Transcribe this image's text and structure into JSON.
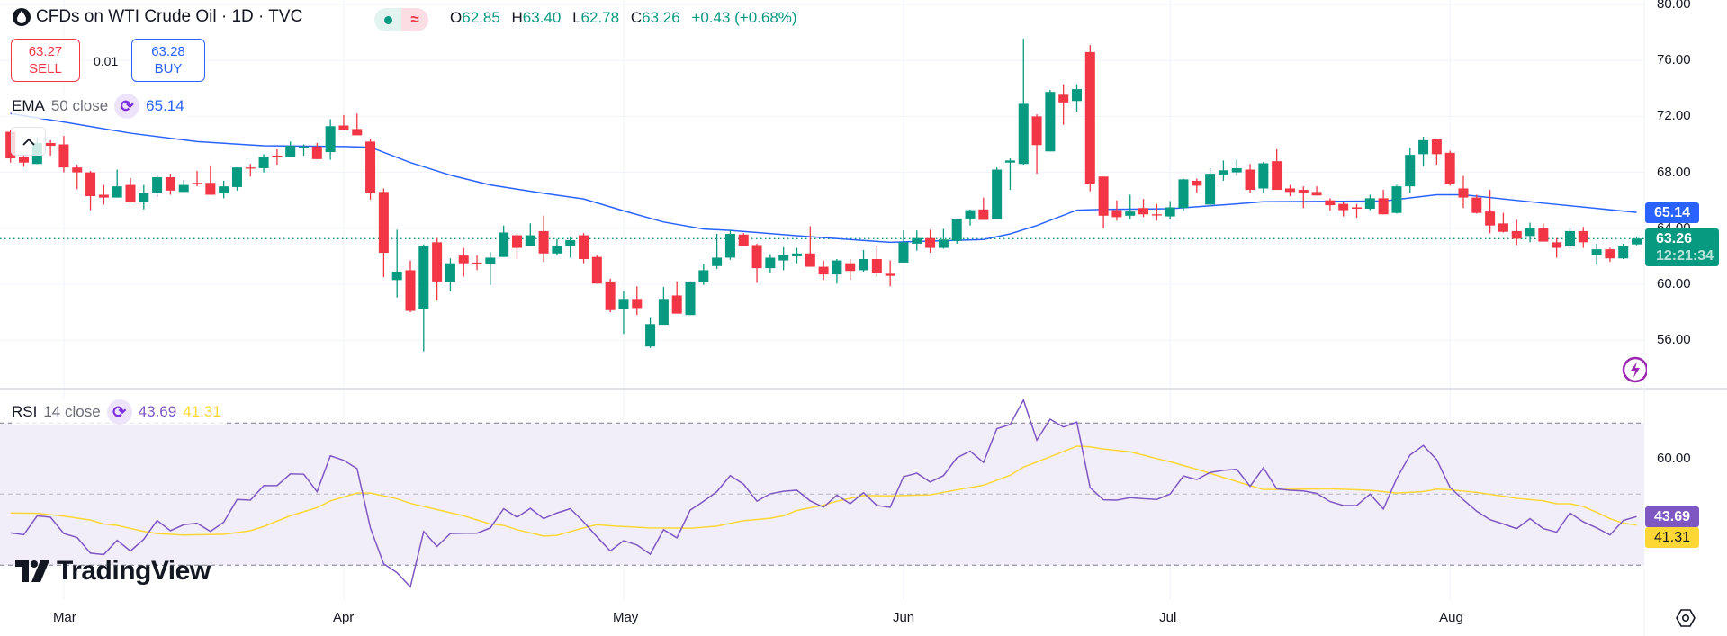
{
  "header": {
    "symbol_title": "CFDs on WTI Crude Oil · 1D · TVC",
    "logo_icon": "oil-drop-icon",
    "status_market_icon": "market-open-dot-icon",
    "status_delay_icon": "approx-icon",
    "status_delay_glyph": "≈",
    "ohlc": {
      "o_label": "O",
      "o": "62.85",
      "h_label": "H",
      "h": "63.40",
      "l_label": "L",
      "l": "62.78",
      "c_label": "C",
      "c": "63.26",
      "change": "+0.43 (+0.68%)"
    }
  },
  "trade": {
    "sell_price": "63.27",
    "sell_label": "SELL",
    "spread": "0.01",
    "buy_price": "63.28",
    "buy_label": "BUY"
  },
  "ema_legend": {
    "name": "EMA",
    "args": "50 close",
    "value": "65.14"
  },
  "rsi_legend": {
    "name": "RSI",
    "args": "14 close",
    "value": "43.69",
    "ma_value": "41.31"
  },
  "price_axis": {
    "ticks": [
      "80.00",
      "76.00",
      "72.00",
      "68.00",
      "64.00",
      "60.00",
      "56.00"
    ]
  },
  "rsi_axis": {
    "ticks": [
      "60.00"
    ]
  },
  "badges": {
    "ema": "65.14",
    "last_price": "63.26",
    "countdown": "12:21:34",
    "rsi": "43.69",
    "rsi_ma": "41.31"
  },
  "time_axis": [
    {
      "label": "Mar",
      "bar": 5
    },
    {
      "label": "Apr",
      "bar": 26
    },
    {
      "label": "May",
      "bar": 47
    },
    {
      "label": "Jun",
      "bar": 68
    },
    {
      "label": "Jul",
      "bar": 88
    },
    {
      "label": "Aug",
      "bar": 109
    }
  ],
  "watermark": "TradingView",
  "colors": {
    "up": "#089981",
    "down": "#f23645",
    "ema": "#2962ff",
    "rsi": "#7e57c2",
    "rsi_ma": "#fdd835",
    "rsi_band": "#f1edf9"
  },
  "chart_data": [
    {
      "type": "candlestick",
      "ylim": [
        53,
        80
      ],
      "yticks": [
        56,
        60,
        64,
        68,
        72,
        76,
        80
      ],
      "grid": true,
      "last_price": 63.26,
      "ohlc_fields": [
        "open",
        "high",
        "low",
        "close"
      ],
      "candles": [
        [
          70.9,
          71.0,
          68.7,
          69.0
        ],
        [
          69.1,
          69.25,
          68.4,
          68.7
        ],
        [
          68.6,
          70.5,
          68.6,
          70.1
        ],
        [
          70.1,
          70.3,
          69.2,
          69.9
        ],
        [
          70.0,
          70.6,
          68.0,
          68.35
        ],
        [
          68.35,
          68.55,
          66.8,
          68.0
        ],
        [
          68.0,
          68.1,
          65.3,
          66.3
        ],
        [
          66.4,
          67.1,
          65.7,
          66.2
        ],
        [
          66.2,
          68.2,
          66.2,
          67.0
        ],
        [
          67.1,
          67.6,
          65.85,
          65.85
        ],
        [
          65.85,
          67.1,
          65.35,
          66.55
        ],
        [
          66.5,
          67.8,
          66.25,
          67.65
        ],
        [
          67.65,
          67.9,
          66.4,
          66.7
        ],
        [
          66.6,
          67.45,
          66.6,
          67.1
        ],
        [
          67.25,
          68.1,
          67.0,
          67.2
        ],
        [
          67.25,
          68.5,
          66.4,
          66.4
        ],
        [
          66.55,
          67.4,
          66.15,
          67.0
        ],
        [
          66.95,
          68.35,
          66.7,
          68.35
        ],
        [
          68.35,
          68.6,
          67.7,
          68.3
        ],
        [
          68.3,
          69.3,
          68.0,
          69.1
        ],
        [
          69.2,
          69.65,
          68.55,
          69.15
        ],
        [
          69.1,
          70.2,
          69.1,
          69.9
        ],
        [
          69.75,
          70.0,
          69.2,
          69.85
        ],
        [
          69.85,
          70.1,
          68.95,
          68.95
        ],
        [
          69.45,
          71.8,
          68.9,
          71.3
        ],
        [
          71.35,
          72.1,
          71.0,
          71.0
        ],
        [
          71.1,
          72.2,
          70.65,
          70.65
        ],
        [
          70.2,
          70.35,
          66.05,
          66.5
        ],
        [
          66.6,
          66.85,
          60.5,
          62.25
        ],
        [
          60.3,
          63.9,
          59.05,
          60.9
        ],
        [
          61.0,
          61.7,
          58.0,
          58.1
        ],
        [
          58.25,
          62.85,
          55.2,
          62.75
        ],
        [
          63.0,
          63.3,
          58.85,
          60.2
        ],
        [
          60.15,
          61.85,
          59.5,
          61.5
        ],
        [
          62.05,
          62.6,
          60.55,
          61.5
        ],
        [
          61.55,
          62.05,
          61.0,
          61.5
        ],
        [
          61.45,
          62.3,
          59.95,
          61.9
        ],
        [
          61.95,
          64.2,
          61.95,
          63.7
        ],
        [
          63.5,
          63.6,
          61.8,
          62.6
        ],
        [
          62.7,
          64.35,
          62.7,
          63.5
        ],
        [
          63.8,
          64.9,
          61.6,
          62.2
        ],
        [
          62.2,
          63.25,
          62.05,
          62.75
        ],
        [
          62.75,
          63.4,
          61.9,
          63.15
        ],
        [
          63.5,
          63.65,
          61.5,
          61.8
        ],
        [
          61.95,
          62.05,
          60.05,
          60.05
        ],
        [
          60.2,
          60.4,
          58.0,
          58.15
        ],
        [
          58.2,
          59.5,
          56.45,
          58.95
        ],
        [
          58.95,
          59.85,
          57.8,
          58.3
        ],
        [
          55.55,
          57.65,
          55.45,
          57.15
        ],
        [
          57.1,
          59.8,
          57.1,
          58.95
        ],
        [
          59.2,
          60.2,
          57.9,
          57.9
        ],
        [
          57.8,
          60.2,
          57.8,
          60.2
        ],
        [
          60.15,
          61.45,
          59.95,
          61.0
        ],
        [
          61.3,
          63.6,
          61.1,
          61.9
        ],
        [
          61.9,
          63.9,
          61.75,
          63.6
        ],
        [
          63.55,
          63.65,
          62.75,
          62.75
        ],
        [
          62.8,
          62.9,
          60.1,
          61.15
        ],
        [
          61.15,
          62.15,
          60.8,
          61.9
        ],
        [
          61.7,
          62.65,
          61.0,
          62.1
        ],
        [
          62.0,
          62.6,
          61.5,
          62.2
        ],
        [
          62.2,
          64.15,
          61.25,
          61.25
        ],
        [
          61.25,
          61.7,
          60.3,
          60.7
        ],
        [
          60.7,
          61.8,
          60.05,
          61.7
        ],
        [
          61.5,
          61.8,
          60.3,
          60.95
        ],
        [
          61.0,
          62.45,
          60.9,
          61.8
        ],
        [
          61.8,
          62.75,
          60.55,
          60.8
        ],
        [
          60.75,
          61.7,
          59.85,
          60.6
        ],
        [
          61.55,
          63.85,
          61.55,
          63.0
        ],
        [
          62.9,
          63.85,
          62.4,
          63.3
        ],
        [
          63.3,
          63.9,
          62.25,
          62.6
        ],
        [
          62.6,
          63.95,
          62.55,
          63.2
        ],
        [
          63.1,
          64.7,
          62.9,
          64.7
        ],
        [
          64.7,
          65.35,
          64.2,
          65.3
        ],
        [
          65.35,
          66.2,
          64.6,
          64.6
        ],
        [
          64.65,
          68.35,
          64.65,
          68.2
        ],
        [
          68.7,
          69.0,
          66.75,
          68.85
        ],
        [
          68.6,
          77.55,
          68.55,
          72.9
        ],
        [
          72.0,
          72.15,
          67.9,
          69.95
        ],
        [
          69.5,
          73.9,
          69.5,
          73.75
        ],
        [
          73.55,
          74.3,
          71.4,
          73.0
        ],
        [
          73.1,
          74.3,
          72.35,
          73.95
        ],
        [
          76.6,
          77.1,
          66.65,
          67.2
        ],
        [
          67.7,
          67.7,
          64.0,
          64.9
        ],
        [
          65.3,
          66.0,
          64.55,
          64.8
        ],
        [
          64.9,
          66.4,
          64.65,
          65.2
        ],
        [
          65.45,
          66.1,
          64.8,
          65.0
        ],
        [
          65.0,
          65.75,
          64.55,
          64.95
        ],
        [
          64.85,
          65.95,
          64.65,
          65.5
        ],
        [
          65.45,
          67.55,
          65.25,
          67.5
        ],
        [
          67.4,
          67.55,
          66.55,
          67.05
        ],
        [
          65.7,
          68.3,
          65.55,
          67.9
        ],
        [
          67.85,
          68.85,
          67.4,
          68.15
        ],
        [
          68.0,
          68.9,
          67.75,
          68.3
        ],
        [
          68.2,
          68.6,
          66.5,
          66.75
        ],
        [
          66.85,
          68.75,
          66.55,
          68.65
        ],
        [
          68.8,
          69.65,
          66.75,
          66.75
        ],
        [
          66.85,
          67.1,
          66.3,
          66.6
        ],
        [
          66.75,
          67.0,
          65.45,
          66.55
        ],
        [
          66.6,
          67.0,
          66.35,
          66.35
        ],
        [
          66.0,
          66.15,
          65.25,
          65.65
        ],
        [
          65.75,
          65.85,
          64.85,
          65.3
        ],
        [
          65.5,
          65.75,
          64.75,
          65.4
        ],
        [
          65.4,
          66.4,
          65.3,
          66.15
        ],
        [
          66.15,
          66.75,
          65.0,
          65.0
        ],
        [
          65.1,
          67.1,
          65.05,
          67.0
        ],
        [
          67.0,
          69.75,
          66.55,
          69.25
        ],
        [
          69.3,
          70.55,
          68.45,
          70.3
        ],
        [
          70.35,
          70.4,
          68.55,
          69.3
        ],
        [
          69.4,
          69.55,
          67.05,
          67.2
        ],
        [
          66.85,
          67.75,
          65.45,
          66.2
        ],
        [
          66.2,
          66.4,
          65.05,
          65.1
        ],
        [
          65.2,
          66.75,
          63.65,
          64.2
        ],
        [
          64.35,
          65.1,
          63.7,
          63.75
        ],
        [
          63.8,
          64.6,
          62.8,
          63.25
        ],
        [
          63.45,
          64.4,
          63.0,
          64.0
        ],
        [
          64.0,
          64.35,
          63.05,
          63.05
        ],
        [
          63.0,
          63.3,
          61.9,
          62.6
        ],
        [
          62.7,
          64.0,
          62.55,
          63.8
        ],
        [
          63.8,
          64.1,
          62.6,
          63.0
        ],
        [
          62.1,
          62.9,
          61.4,
          62.5
        ],
        [
          62.5,
          62.6,
          61.6,
          61.85
        ],
        [
          61.85,
          62.9,
          61.8,
          62.7
        ],
        [
          62.85,
          63.4,
          62.78,
          63.26
        ]
      ],
      "ema50_points_bar_value": [
        [
          1,
          72.2
        ],
        [
          5,
          71.6
        ],
        [
          10,
          70.8
        ],
        [
          15,
          70.2
        ],
        [
          20,
          69.9
        ],
        [
          26,
          69.85
        ],
        [
          28,
          69.8
        ],
        [
          31,
          68.7
        ],
        [
          34,
          67.8
        ],
        [
          37,
          67.1
        ],
        [
          41,
          66.5
        ],
        [
          44,
          66.1
        ],
        [
          47,
          65.25
        ],
        [
          50,
          64.45
        ],
        [
          53,
          63.95
        ],
        [
          55,
          63.85
        ],
        [
          61,
          63.4
        ],
        [
          67,
          63.0
        ],
        [
          74,
          63.2
        ],
        [
          76,
          63.6
        ],
        [
          78,
          64.2
        ],
        [
          81,
          65.3
        ],
        [
          83,
          65.35
        ],
        [
          88,
          65.4
        ],
        [
          93,
          65.75
        ],
        [
          95,
          65.9
        ],
        [
          104,
          65.95
        ],
        [
          108,
          66.4
        ],
        [
          110,
          66.4
        ],
        [
          116,
          65.8
        ],
        [
          123,
          65.14
        ]
      ]
    },
    {
      "type": "line",
      "ylim": [
        21,
        78
      ],
      "levels": {
        "upper": 70,
        "middle": 50,
        "lower": 30
      },
      "rsi": [
        39.1,
        38.6,
        43.9,
        43.5,
        38.9,
        37.8,
        33.4,
        33.0,
        37.0,
        34.0,
        37.3,
        42.6,
        39.7,
        41.4,
        41.8,
        39.5,
        42.1,
        48.5,
        48.3,
        52.4,
        52.4,
        55.7,
        55.6,
        50.7,
        60.8,
        59.5,
        57.2,
        40.5,
        30.4,
        27.9,
        23.9,
        39.5,
        35.3,
        38.9,
        39.0,
        39.0,
        40.5,
        45.9,
        43.5,
        46.0,
        43.1,
        44.7,
        45.9,
        42.2,
        38.0,
        34.0,
        36.9,
        35.7,
        33.1,
        40.0,
        37.7,
        45.5,
        48.0,
        50.7,
        55.2,
        52.8,
        48.0,
        50.1,
        50.8,
        51.1,
        48.1,
        46.3,
        49.7,
        47.3,
        50.4,
        46.8,
        46.3,
        54.9,
        55.9,
        53.4,
        55.2,
        60.2,
        62.1,
        58.9,
        68.4,
        69.6,
        76.5,
        65.2,
        71.1,
        68.9,
        70.3,
        51.8,
        48.4,
        48.3,
        49.0,
        48.7,
        48.5,
        50.0,
        55.1,
        54.1,
        56.1,
        56.7,
        57.0,
        52.2,
        57.4,
        51.5,
        51.1,
        50.9,
        50.2,
        47.9,
        46.8,
        46.8,
        50.0,
        45.8,
        54.4,
        61.0,
        63.7,
        59.7,
        51.9,
        48.4,
        45.2,
        42.8,
        41.6,
        40.3,
        43.1,
        40.3,
        39.3,
        44.7,
        42.2,
        40.5,
        38.5,
        42.6,
        43.69
      ],
      "rsi_ma_points_bar_value": [
        [
          1,
          44.7
        ],
        [
          3,
          44.6
        ],
        [
          5,
          43.8
        ],
        [
          7,
          42.7
        ],
        [
          8,
          41.6
        ],
        [
          9,
          41.2
        ],
        [
          11,
          39.5
        ],
        [
          12,
          38.9
        ],
        [
          14,
          38.5
        ],
        [
          17,
          38.7
        ],
        [
          19,
          39.7
        ],
        [
          20,
          40.9
        ],
        [
          22,
          43.9
        ],
        [
          24,
          46.2
        ],
        [
          25,
          48.1
        ],
        [
          27,
          50.3
        ],
        [
          28,
          50.3
        ],
        [
          30,
          48.7
        ],
        [
          31,
          47.4
        ],
        [
          35,
          43.9
        ],
        [
          37,
          41.6
        ],
        [
          38,
          41.2
        ],
        [
          39,
          40.0
        ],
        [
          41,
          38.2
        ],
        [
          42,
          38.4
        ],
        [
          44,
          40.5
        ],
        [
          45,
          41.4
        ],
        [
          46,
          41.1
        ],
        [
          49,
          40.5
        ],
        [
          52,
          40.4
        ],
        [
          54,
          41.0
        ],
        [
          55,
          41.8
        ],
        [
          56,
          42.5
        ],
        [
          58,
          43.2
        ],
        [
          59,
          43.9
        ],
        [
          60,
          45.4
        ],
        [
          62,
          46.9
        ],
        [
          63,
          48.0
        ],
        [
          65,
          49.6
        ],
        [
          67,
          49.5
        ],
        [
          70,
          49.8
        ],
        [
          72,
          51.2
        ],
        [
          74,
          52.5
        ],
        [
          76,
          55.3
        ],
        [
          77,
          57.6
        ],
        [
          79,
          60.5
        ],
        [
          81,
          63.5
        ],
        [
          82,
          63.3
        ],
        [
          83,
          62.7
        ],
        [
          85,
          61.9
        ],
        [
          87,
          60.0
        ],
        [
          88,
          59.1
        ],
        [
          90,
          57.0
        ],
        [
          92,
          54.7
        ],
        [
          94,
          52.4
        ],
        [
          95,
          51.3
        ],
        [
          96,
          51.3
        ],
        [
          100,
          51.5
        ],
        [
          103,
          51.1
        ],
        [
          105,
          50.3
        ],
        [
          107,
          50.7
        ],
        [
          108,
          51.4
        ],
        [
          109,
          51.2
        ],
        [
          111,
          50.5
        ],
        [
          113,
          49.4
        ],
        [
          114,
          48.8
        ],
        [
          116,
          48.1
        ],
        [
          117,
          47.3
        ],
        [
          118,
          47.3
        ],
        [
          119,
          46.5
        ],
        [
          120,
          44.9
        ],
        [
          121,
          43.1
        ],
        [
          122,
          41.8
        ],
        [
          123,
          41.31
        ]
      ]
    }
  ]
}
